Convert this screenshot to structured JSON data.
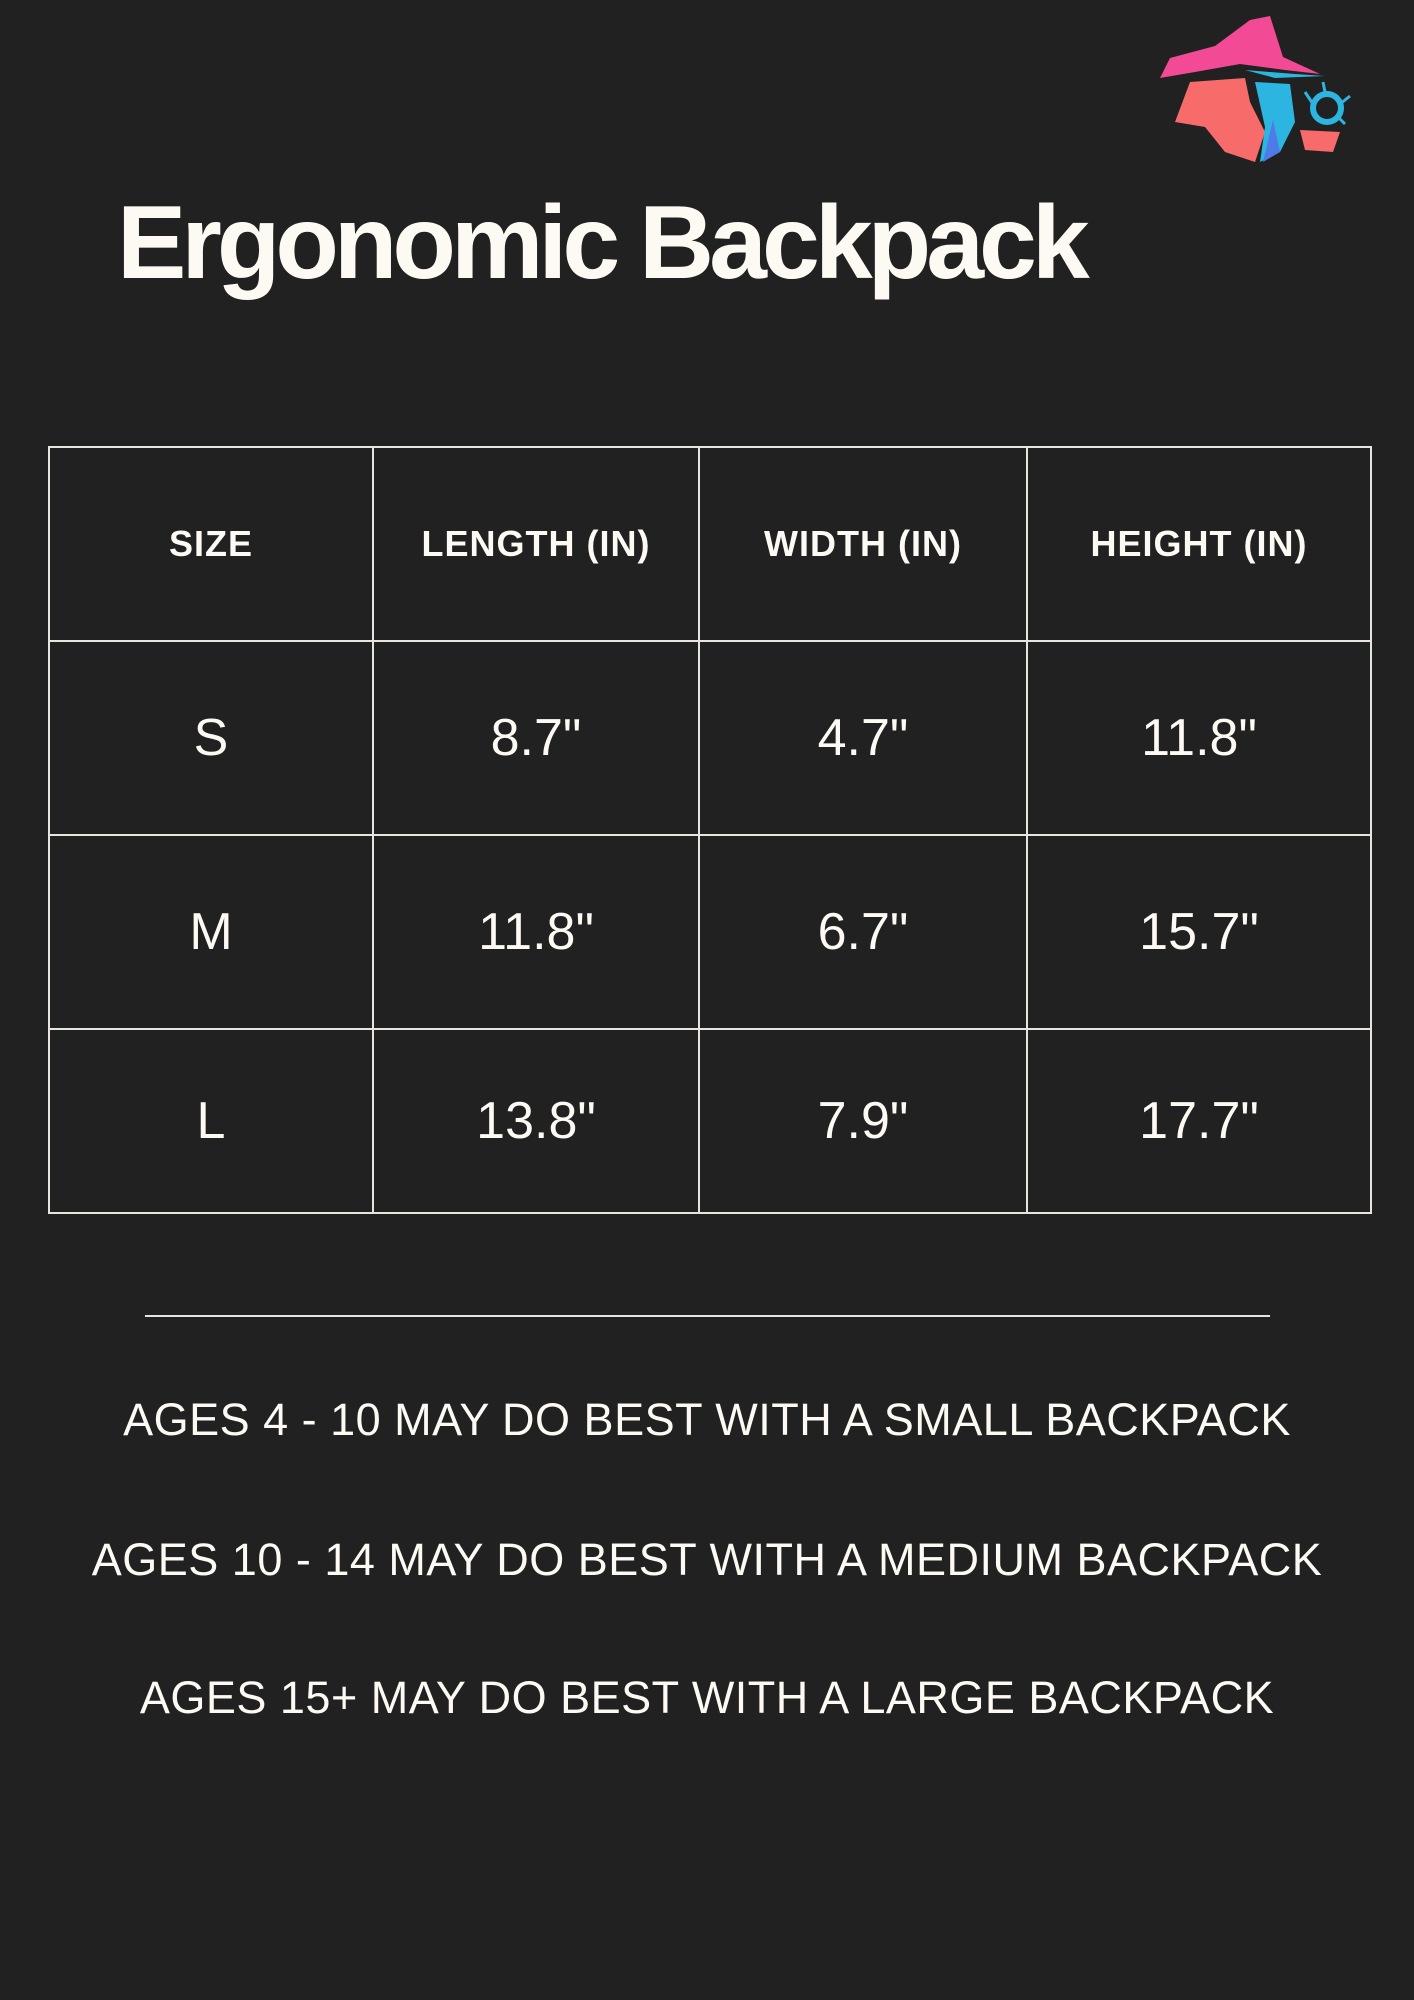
{
  "logo": {
    "name": "wizard-logo",
    "colors": [
      "#f24a94",
      "#f76b6b",
      "#2cb5e0",
      "#4f7be8"
    ]
  },
  "title": "Ergonomic Backpack",
  "table": {
    "headers": [
      "SIZE",
      "LENGTH (IN)",
      "WIDTH (IN)",
      "HEIGHT (IN)"
    ],
    "rows": [
      [
        "S",
        "8.7\"",
        "4.7\"",
        "11.8\""
      ],
      [
        "M",
        "11.8\"",
        "6.7\"",
        "15.7\""
      ],
      [
        "L",
        "13.8\"",
        "7.9\"",
        "17.7\""
      ]
    ]
  },
  "notes": [
    "AGES 4 - 10 MAY DO BEST WITH A SMALL BACKPACK",
    "AGES 10 - 14 MAY DO BEST WITH A MEDIUM BACKPACK",
    "AGES 15+ MAY DO BEST WITH A LARGE BACKPACK"
  ]
}
